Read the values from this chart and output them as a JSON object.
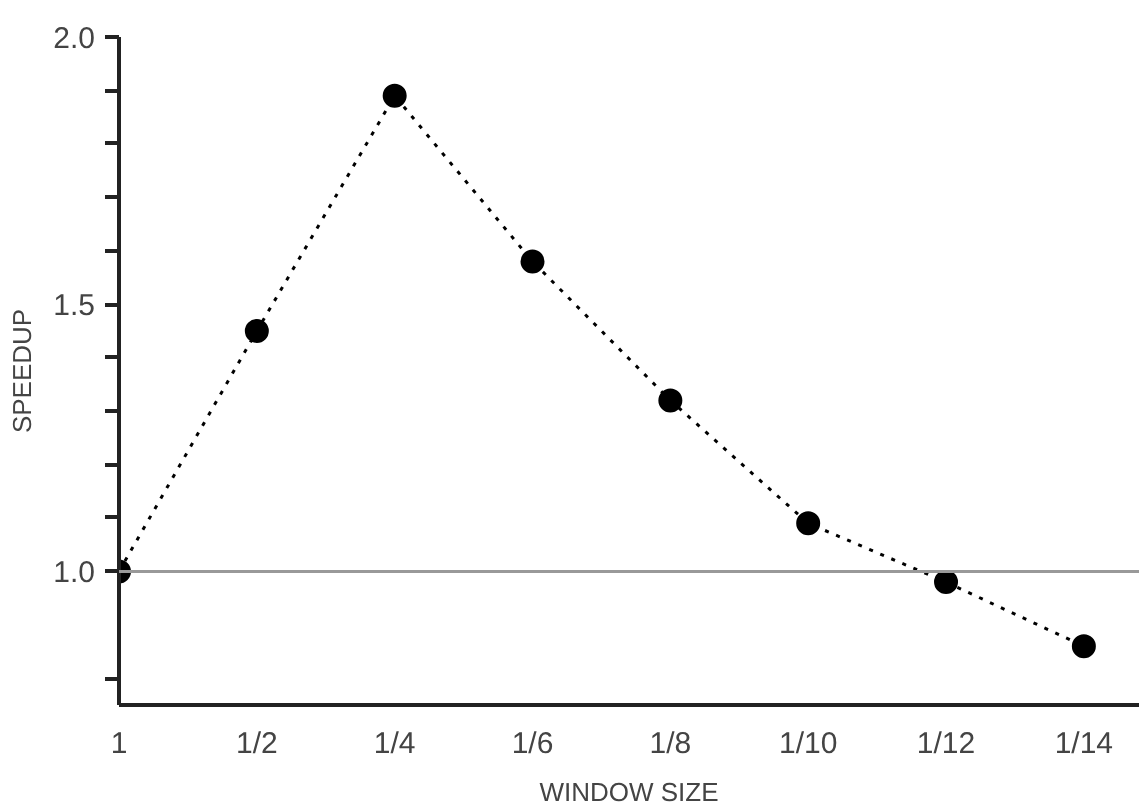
{
  "chart_data": {
    "type": "line",
    "xlabel": "WINDOW SIZE",
    "ylabel": "SPEEDUP",
    "categories": [
      "1",
      "1/2",
      "1/4",
      "1/6",
      "1/8",
      "1/10",
      "1/12",
      "1/14"
    ],
    "series": [
      {
        "color": "#000000",
        "values": [
          1.0,
          1.45,
          1.89,
          1.58,
          1.32,
          1.09,
          0.98,
          0.86
        ]
      }
    ],
    "ylim": [
      0.75,
      2.0
    ],
    "yticks": [
      {
        "value": 0.8,
        "label": null
      },
      {
        "value": 1.0,
        "label": "1.0"
      },
      {
        "value": 1.1,
        "label": null
      },
      {
        "value": 1.2,
        "label": null
      },
      {
        "value": 1.3,
        "label": null
      },
      {
        "value": 1.4,
        "label": null
      },
      {
        "value": 1.5,
        "label": "1.5"
      },
      {
        "value": 1.6,
        "label": null
      },
      {
        "value": 1.7,
        "label": null
      },
      {
        "value": 1.8,
        "label": null
      },
      {
        "value": 1.9,
        "label": null
      },
      {
        "value": 2.0,
        "label": "2.0"
      }
    ],
    "ref_lines": [
      {
        "axis": "y",
        "value": 1.0,
        "color": "#999999"
      }
    ],
    "marker": "circle",
    "line_style": "dotted",
    "grid": false
  }
}
